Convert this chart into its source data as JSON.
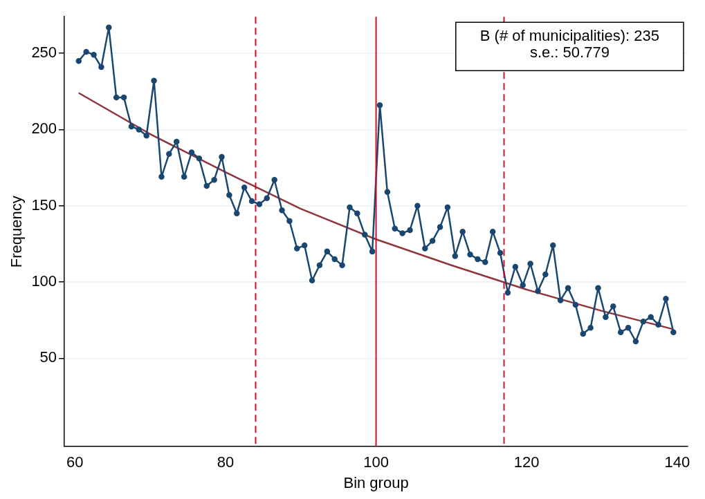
{
  "chart_data": {
    "type": "line",
    "xlabel": "Bin group",
    "ylabel": "Frequency",
    "xlim": [
      58.6,
      141.4
    ],
    "ylim": [
      -8,
      274
    ],
    "xticks": [
      60,
      80,
      100,
      120,
      140
    ],
    "yticks": [
      50,
      100,
      150,
      200,
      250
    ],
    "grid": "y",
    "legend": false,
    "series": [
      {
        "type": "line",
        "color": "#1a476f",
        "marker": "circle",
        "x": [
          60.5,
          61.5,
          62.5,
          63.5,
          64.5,
          65.5,
          66.5,
          67.5,
          68.5,
          69.5,
          70.5,
          71.5,
          72.5,
          73.5,
          74.5,
          75.5,
          76.5,
          77.5,
          78.5,
          79.5,
          80.5,
          81.5,
          82.5,
          83.5,
          84.5,
          85.5,
          86.5,
          87.5,
          88.5,
          89.5,
          90.5,
          91.5,
          92.5,
          93.5,
          94.5,
          95.5,
          96.5,
          97.5,
          98.5,
          99.5,
          100.5,
          101.5,
          102.5,
          103.5,
          104.5,
          105.5,
          106.5,
          107.5,
          108.5,
          109.5,
          110.5,
          111.5,
          112.5,
          113.5,
          114.5,
          115.5,
          116.5,
          117.5,
          118.5,
          119.5,
          120.5,
          121.5,
          122.5,
          123.5,
          124.5,
          125.5,
          126.5,
          127.5,
          128.5,
          129.5,
          130.5,
          131.5,
          132.5,
          133.5,
          134.5,
          135.5,
          136.5,
          137.5,
          138.5,
          139.5
        ],
        "values": [
          245,
          251,
          249,
          241,
          267,
          221,
          221,
          202,
          200,
          196,
          232,
          169,
          184,
          192,
          169,
          185,
          181,
          163,
          167,
          182,
          157,
          145,
          162,
          153,
          151,
          155,
          167,
          147,
          140,
          122,
          124,
          101,
          111,
          120,
          115,
          111,
          149,
          145,
          131,
          120,
          216,
          159,
          135,
          132,
          134,
          150,
          122,
          127,
          136,
          149,
          117,
          133,
          118,
          115,
          113,
          133,
          119,
          93,
          110,
          98,
          112,
          94,
          105,
          124,
          88,
          96,
          85,
          66,
          70,
          96,
          77,
          84,
          67,
          70,
          61,
          74,
          77,
          72,
          89,
          67
        ]
      },
      {
        "type": "line",
        "color": "#90353b",
        "marker": "none",
        "x": [
          60.5,
          70,
          80,
          90,
          100,
          110,
          120,
          130,
          139.5
        ],
        "values": [
          224,
          197,
          172,
          148,
          128,
          111,
          95,
          81,
          69
        ]
      }
    ],
    "ref_lines": [
      {
        "axis": "x",
        "value": 84,
        "color": "#c8102e",
        "line_style": "dashed"
      },
      {
        "axis": "x",
        "value": 100,
        "color": "#c8102e",
        "line_style": "solid"
      },
      {
        "axis": "x",
        "value": 117,
        "color": "#c8102e",
        "line_style": "dashed"
      }
    ],
    "annotations": [
      "B (# of municipalities): 235",
      "s.e.: 50.779"
    ]
  }
}
